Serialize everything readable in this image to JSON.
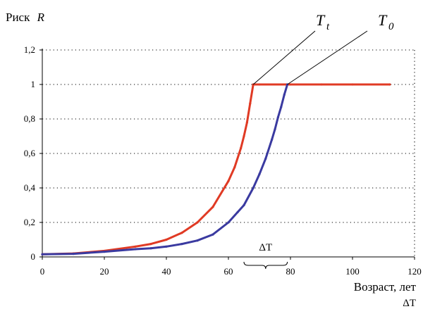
{
  "chart_data": {
    "type": "line",
    "ylabel_text": "Риск",
    "ylabel_symbol": "R",
    "xlabel": "Возраст, лет",
    "xlim": [
      0,
      120
    ],
    "ylim": [
      0,
      1.2
    ],
    "x_ticks": [
      0,
      20,
      40,
      60,
      80,
      100,
      120
    ],
    "y_ticks": [
      0,
      0.2,
      0.4,
      0.6,
      0.8,
      1,
      1.2
    ],
    "y_tick_labels": [
      "0",
      "0,2",
      "0,4",
      "0,6",
      "0,8",
      "1",
      "1,2"
    ],
    "grid": true,
    "series": [
      {
        "color": "#e03a24",
        "x": [
          0,
          10,
          20,
          30,
          35,
          40,
          45,
          50,
          55,
          60,
          62,
          64,
          65,
          66,
          67,
          68,
          70,
          80,
          90,
          100,
          112
        ],
        "y": [
          0.015,
          0.02,
          0.035,
          0.06,
          0.075,
          0.1,
          0.14,
          0.2,
          0.29,
          0.44,
          0.52,
          0.63,
          0.7,
          0.78,
          0.89,
          1,
          1,
          1,
          1,
          1,
          1
        ]
      },
      {
        "color": "#3a3aa0",
        "x": [
          0,
          10,
          20,
          30,
          35,
          40,
          45,
          50,
          55,
          60,
          63,
          65,
          68,
          70,
          72,
          74,
          75,
          76,
          77,
          78,
          79
        ],
        "y": [
          0.015,
          0.018,
          0.03,
          0.045,
          0.05,
          0.06,
          0.075,
          0.095,
          0.13,
          0.2,
          0.26,
          0.3,
          0.4,
          0.48,
          0.57,
          0.68,
          0.74,
          0.81,
          0.87,
          0.94,
          1
        ]
      }
    ],
    "annotations": {
      "t_t_main": "T",
      "t_t_sub": "t",
      "t_0_main": "T",
      "t_0_sub": "0",
      "delta_top": "ΔT",
      "delta_bottom": "ΔT",
      "t_t_x": 68,
      "t_0_x": 79,
      "delta_x_start": 65,
      "delta_x_end": 79
    }
  }
}
